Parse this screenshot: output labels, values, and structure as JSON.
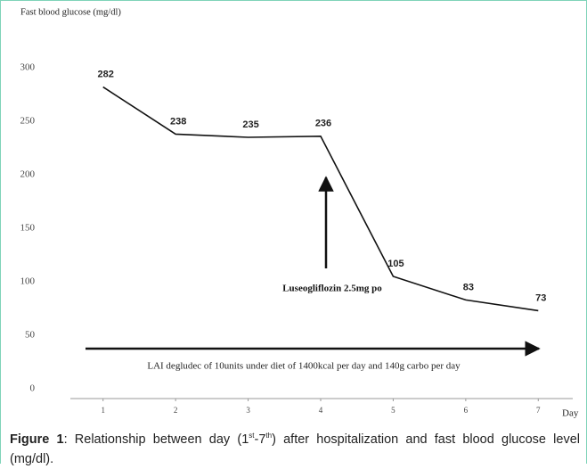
{
  "chart_data": {
    "type": "line",
    "ylabel": "Fast blood glucose (mg/dl)",
    "xlabel": "Day",
    "x": [
      1,
      2,
      3,
      4,
      5,
      6,
      7
    ],
    "values": [
      282,
      238,
      235,
      236,
      105,
      83,
      73
    ],
    "color": "#111111",
    "xlim": [
      0.5,
      7.5
    ],
    "xticks": [
      1,
      2,
      3,
      4,
      5,
      6,
      7
    ],
    "ylim": [
      0,
      300
    ],
    "yticks": [
      0,
      50,
      100,
      150,
      200,
      250,
      300
    ],
    "grid": false,
    "annotations": [
      "Luseogliflozin 2.5mg po",
      "LAI degludec of 10units under diet of 1400kcal per day and 140g carbo per day"
    ]
  },
  "caption": {
    "label": "Figure 1",
    "parts": [
      ": Relationship between day (1",
      "st",
      "-7",
      "th",
      ") after hospitalization and fast blood glucose level (mg/dl)."
    ]
  }
}
